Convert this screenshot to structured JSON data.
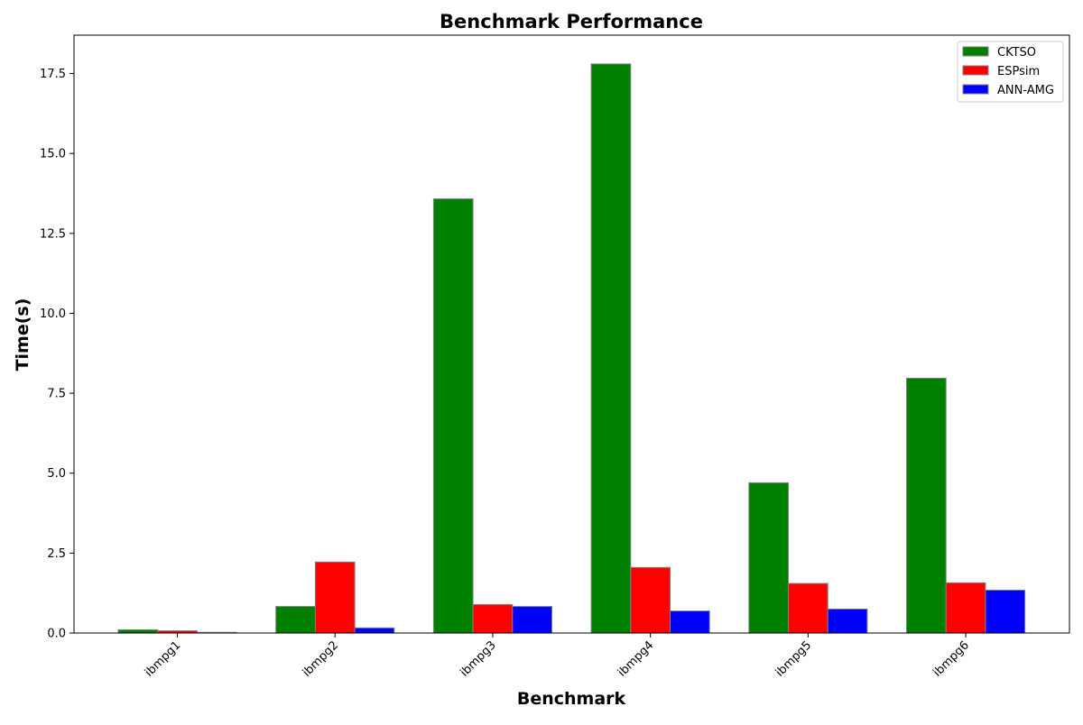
{
  "chart_data": {
    "type": "bar",
    "title": "Benchmark Performance",
    "xlabel": "Benchmark",
    "ylabel": "Time(s)",
    "categories": [
      "ibmpg1",
      "ibmpg2",
      "ibmpg3",
      "ibmpg4",
      "ibmpg5",
      "ibmpg6"
    ],
    "series": [
      {
        "name": "CKTSO",
        "color": "#008000",
        "values": [
          0.1,
          0.83,
          13.58,
          17.8,
          4.7,
          7.97
        ]
      },
      {
        "name": "ESPsim",
        "color": "#ff0000",
        "values": [
          0.07,
          2.22,
          0.89,
          2.05,
          1.55,
          1.57
        ]
      },
      {
        "name": "ANN-AMG",
        "color": "#0000ff",
        "values": [
          0.02,
          0.16,
          0.83,
          0.69,
          0.75,
          1.34
        ]
      }
    ],
    "ylim": [
      0,
      18.7
    ],
    "yticks": [
      0.0,
      2.5,
      5.0,
      7.5,
      10.0,
      12.5,
      15.0,
      17.5
    ],
    "ytick_labels": [
      "0.0",
      "2.5",
      "5.0",
      "7.5",
      "10.0",
      "12.5",
      "15.0",
      "17.5"
    ],
    "legend_position": "top-right",
    "grid": false
  }
}
